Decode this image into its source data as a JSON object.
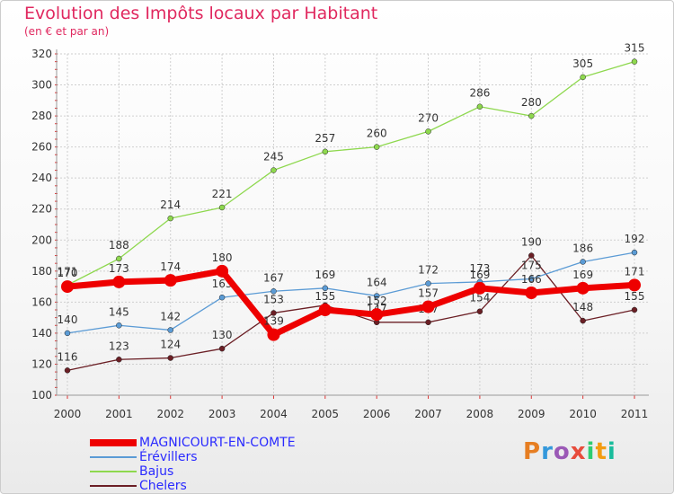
{
  "chart_data": {
    "type": "line",
    "title": "Evolution des Impôts locaux par Habitant",
    "subtitle": "(en € et par an)",
    "xlabel": "",
    "ylabel": "",
    "categories": [
      "2000",
      "2001",
      "2002",
      "2003",
      "2004",
      "2005",
      "2006",
      "2007",
      "2008",
      "2009",
      "2010",
      "2011"
    ],
    "ylim": [
      100,
      320
    ],
    "yticks": [
      100,
      120,
      140,
      160,
      180,
      200,
      220,
      240,
      260,
      280,
      300,
      320
    ],
    "grid": true,
    "legend_position": "bottom-left",
    "series": [
      {
        "name": "Chelers",
        "color": "#6b1f25",
        "values": [
          116,
          123,
          124,
          130,
          153,
          158,
          147,
          147,
          154,
          190,
          148,
          155
        ],
        "labels": [
          "116",
          "123",
          "124",
          "130",
          "153",
          "",
          "147",
          "147",
          "154",
          "190",
          "148",
          "155"
        ]
      },
      {
        "name": "Bajus",
        "color": "#8ed84e",
        "values": [
          171,
          188,
          214,
          221,
          245,
          257,
          260,
          270,
          286,
          280,
          305,
          315
        ],
        "labels": [
          "171",
          "188",
          "214",
          "221",
          "245",
          "257",
          "260",
          "270",
          "286",
          "280",
          "305",
          "315"
        ]
      },
      {
        "name": "Érévillers",
        "color": "#5b9bd5",
        "values": [
          140,
          145,
          142,
          163,
          167,
          169,
          164,
          172,
          173,
          175,
          186,
          192
        ],
        "labels": [
          "140",
          "145",
          "142",
          "163",
          "167",
          "169",
          "164",
          "172",
          "173",
          "175",
          "186",
          "192"
        ]
      },
      {
        "name": "MAGNICOURT-EN-COMTE",
        "color": "#ee0000",
        "values": [
          170,
          173,
          174,
          180,
          139,
          155,
          152,
          157,
          169,
          166,
          169,
          171
        ],
        "labels": [
          "170",
          "173",
          "174",
          "180",
          "139",
          "155",
          "152",
          "157",
          "169",
          "166",
          "169",
          "171"
        ]
      }
    ],
    "legend_order": [
      "MAGNICOURT-EN-COMTE",
      "Érévillers",
      "Bajus",
      "Chelers"
    ]
  },
  "brand": {
    "letters": [
      "P",
      "r",
      "o",
      "x",
      "i",
      "t",
      "i"
    ],
    "colors": [
      "#e67e22",
      "#3498db",
      "#9b59b6",
      "#e74c3c",
      "#2ecc71",
      "#f39c12",
      "#1abc9c"
    ]
  }
}
